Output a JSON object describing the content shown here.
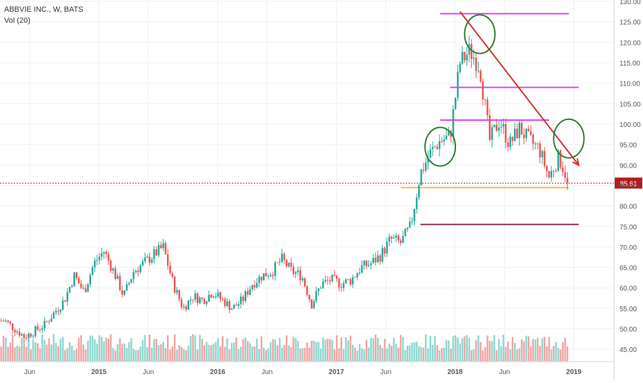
{
  "header": {
    "title": "ABBVIE INC., W, BATS",
    "volume_label": "Vol (20)"
  },
  "colors": {
    "up": "#26a69a",
    "down": "#ef5350",
    "vol_up": "#8fd6cf",
    "vol_down": "#f3a3a3",
    "grid": "#eef0f3",
    "axis_text": "#555555",
    "price_line": "#b71c1c",
    "magenta": "#e040fb",
    "orange": "#ffb74d",
    "maroon": "#8e2f4f",
    "trend": "#d32f2f",
    "circle": "#2e7d32"
  },
  "chart_data": {
    "type": "candlestick",
    "title": "ABBVIE INC., W, BATS",
    "timeframe": "W",
    "y_axis": {
      "min": 42,
      "max": 130,
      "ticks": [
        "130.00",
        "125.00",
        "120.00",
        "115.00",
        "110.00",
        "105.00",
        "100.00",
        "95.00",
        "90.00",
        "85.00",
        "80.00",
        "75.00",
        "70.00",
        "65.00",
        "60.00",
        "55.00",
        "50.00",
        "45.00"
      ]
    },
    "x_axis": {
      "ticks": [
        "Jun",
        "2015",
        "Jun",
        "2016",
        "Jun",
        "2017",
        "Jun",
        "2018",
        "Jun",
        "2019"
      ]
    },
    "current_price": {
      "value": 85.61,
      "label": "85.61"
    },
    "anchors": [
      {
        "date": "2014-03",
        "price": 52
      },
      {
        "date": "2014-05",
        "price": 48
      },
      {
        "date": "2014-07",
        "price": 51
      },
      {
        "date": "2014-09",
        "price": 57
      },
      {
        "date": "2014-10",
        "price": 63
      },
      {
        "date": "2014-11",
        "price": 59
      },
      {
        "date": "2014-12",
        "price": 66
      },
      {
        "date": "2015-01",
        "price": 69
      },
      {
        "date": "2015-02",
        "price": 64
      },
      {
        "date": "2015-03",
        "price": 58
      },
      {
        "date": "2015-04",
        "price": 64
      },
      {
        "date": "2015-05",
        "price": 66
      },
      {
        "date": "2015-06",
        "price": 68
      },
      {
        "date": "2015-07",
        "price": 70
      },
      {
        "date": "2015-08",
        "price": 61
      },
      {
        "date": "2015-09",
        "price": 55
      },
      {
        "date": "2015-10",
        "price": 58
      },
      {
        "date": "2015-11",
        "price": 57
      },
      {
        "date": "2015-12",
        "price": 59
      },
      {
        "date": "2016-01",
        "price": 57
      },
      {
        "date": "2016-02",
        "price": 55
      },
      {
        "date": "2016-03",
        "price": 57
      },
      {
        "date": "2016-04",
        "price": 61
      },
      {
        "date": "2016-05",
        "price": 63
      },
      {
        "date": "2016-06",
        "price": 64
      },
      {
        "date": "2016-07",
        "price": 67
      },
      {
        "date": "2016-08",
        "price": 64
      },
      {
        "date": "2016-09",
        "price": 63
      },
      {
        "date": "2016-10",
        "price": 56
      },
      {
        "date": "2016-11",
        "price": 61
      },
      {
        "date": "2016-12",
        "price": 62
      },
      {
        "date": "2017-01",
        "price": 61
      },
      {
        "date": "2017-02",
        "price": 62
      },
      {
        "date": "2017-03",
        "price": 65
      },
      {
        "date": "2017-04",
        "price": 66
      },
      {
        "date": "2017-05",
        "price": 68
      },
      {
        "date": "2017-06",
        "price": 72
      },
      {
        "date": "2017-07",
        "price": 71
      },
      {
        "date": "2017-08",
        "price": 75
      },
      {
        "date": "2017-09",
        "price": 88
      },
      {
        "date": "2017-10",
        "price": 93
      },
      {
        "date": "2017-11",
        "price": 96
      },
      {
        "date": "2017-12",
        "price": 97
      },
      {
        "date": "2018-01",
        "price": 115
      },
      {
        "date": "2018-02",
        "price": 118
      },
      {
        "date": "2018-03",
        "price": 114
      },
      {
        "date": "2018-04",
        "price": 96
      },
      {
        "date": "2018-05",
        "price": 101
      },
      {
        "date": "2018-06",
        "price": 95
      },
      {
        "date": "2018-07",
        "price": 99
      },
      {
        "date": "2018-08",
        "price": 96
      },
      {
        "date": "2018-09",
        "price": 94
      },
      {
        "date": "2018-10",
        "price": 87
      },
      {
        "date": "2018-11",
        "price": 92
      },
      {
        "date": "2018-12",
        "price": 85.61
      }
    ],
    "horizontal_lines": [
      {
        "color": "magenta",
        "price": 127,
        "from": "2017-11",
        "to": "2018-12"
      },
      {
        "color": "magenta",
        "price": 109,
        "from": "2017-12",
        "to": "2019-01"
      },
      {
        "color": "magenta",
        "price": 101,
        "from": "2017-11",
        "to": "2018-10"
      },
      {
        "color": "orange",
        "price": 84.5,
        "from": "2017-07",
        "to": "2018-12"
      },
      {
        "color": "maroon",
        "price": 75.5,
        "from": "2017-09",
        "to": "2019-01"
      }
    ],
    "trend_arrow": {
      "from": {
        "date": "2018-01",
        "price": 127.5
      },
      "to": {
        "date": "2019-01",
        "price": 90
      }
    },
    "circles": [
      {
        "date": "2017-11",
        "price": 94.5
      },
      {
        "date": "2018-03",
        "price": 122
      },
      {
        "date": "2018-12",
        "price": 96.5
      }
    ]
  }
}
